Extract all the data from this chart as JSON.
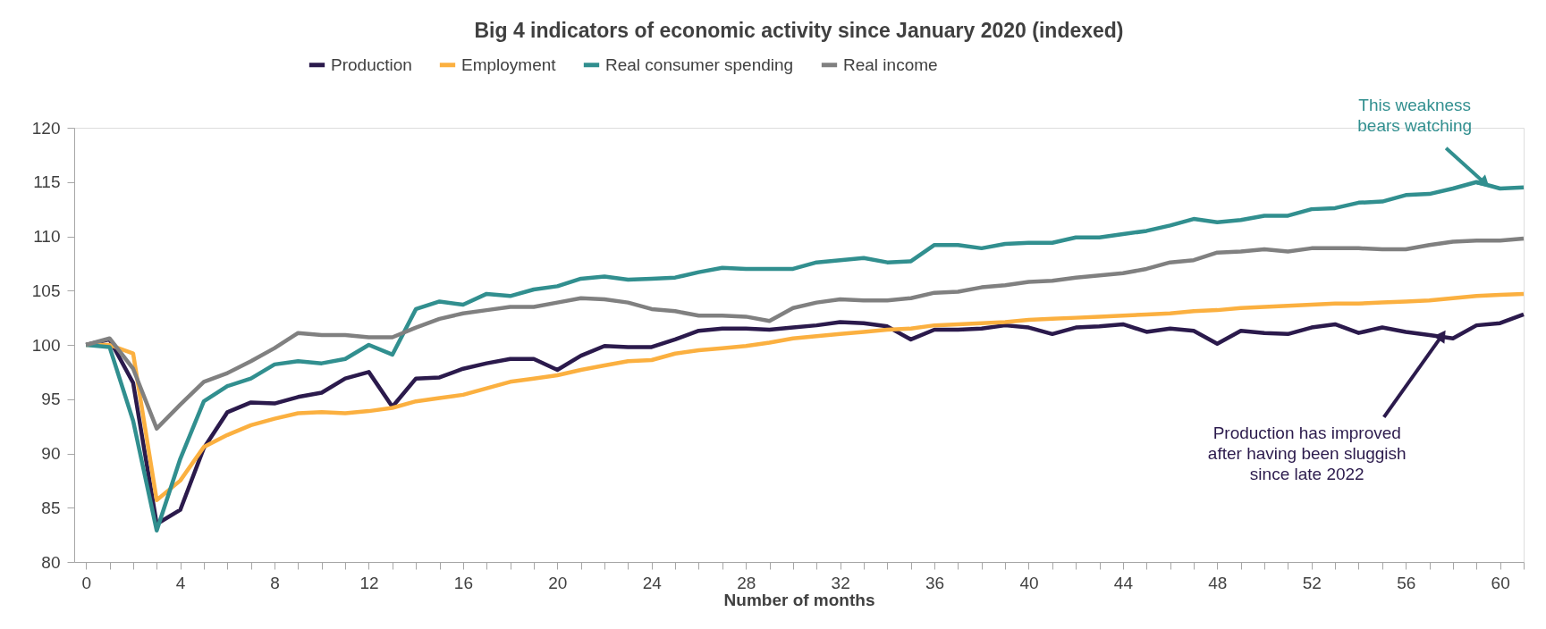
{
  "chart_data": {
    "type": "line",
    "title": "Big 4 indicators of economic activity since January 2020 (indexed)",
    "xlabel": "Number of months",
    "x": [
      0,
      1,
      2,
      3,
      4,
      5,
      6,
      7,
      8,
      9,
      10,
      11,
      12,
      13,
      14,
      15,
      16,
      17,
      18,
      19,
      20,
      21,
      22,
      23,
      24,
      25,
      26,
      27,
      28,
      29,
      30,
      31,
      32,
      33,
      34,
      35,
      36,
      37,
      38,
      39,
      40,
      41,
      42,
      43,
      44,
      45,
      46,
      47,
      48,
      49,
      50,
      51,
      52,
      53,
      54,
      55,
      56,
      57,
      58,
      59,
      60,
      61
    ],
    "series": [
      {
        "name": "Production",
        "color": "#2b1a4c",
        "values": [
          100,
          100.5,
          96.5,
          83.5,
          84.8,
          90.5,
          93.8,
          94.7,
          94.6,
          95.2,
          95.6,
          96.9,
          97.5,
          94.3,
          96.9,
          97,
          97.8,
          98.3,
          98.7,
          98.7,
          97.7,
          99,
          99.9,
          99.8,
          99.8,
          100.5,
          101.3,
          101.5,
          101.5,
          101.4,
          101.6,
          101.8,
          102.1,
          102,
          101.7,
          100.5,
          101.4,
          101.4,
          101.5,
          101.8,
          101.6,
          101,
          101.6,
          101.7,
          101.9,
          101.2,
          101.5,
          101.3,
          100.1,
          101.3,
          101.1,
          101,
          101.6,
          101.9,
          101.1,
          101.6,
          101.2,
          100.9,
          100.6,
          101.8,
          102,
          102.8
        ]
      },
      {
        "name": "Employment",
        "color": "#fbb040",
        "values": [
          100,
          100,
          99.2,
          85.7,
          87.5,
          90.6,
          91.7,
          92.6,
          93.2,
          93.7,
          93.8,
          93.7,
          93.9,
          94.2,
          94.8,
          95.1,
          95.4,
          96,
          96.6,
          96.9,
          97.2,
          97.7,
          98.1,
          98.5,
          98.6,
          99.2,
          99.5,
          99.7,
          99.9,
          100.2,
          100.6,
          100.8,
          101,
          101.2,
          101.4,
          101.5,
          101.8,
          101.9,
          102,
          102.1,
          102.3,
          102.4,
          102.5,
          102.6,
          102.7,
          102.8,
          102.9,
          103.1,
          103.2,
          103.4,
          103.5,
          103.6,
          103.7,
          103.8,
          103.8,
          103.9,
          104,
          104.1,
          104.3,
          104.5,
          104.6,
          104.7
        ]
      },
      {
        "name": "Real consumer spending",
        "color": "#318f8f",
        "values": [
          100,
          99.8,
          93,
          82.9,
          89.5,
          94.8,
          96.2,
          96.9,
          98.2,
          98.5,
          98.3,
          98.7,
          100,
          99.1,
          103.3,
          104,
          103.7,
          104.7,
          104.5,
          105.1,
          105.4,
          106.1,
          106.3,
          106,
          106.1,
          106.2,
          106.7,
          107.1,
          107,
          107,
          107,
          107.6,
          107.8,
          108,
          107.6,
          107.7,
          109.2,
          109.2,
          108.9,
          109.3,
          109.4,
          109.4,
          109.9,
          109.9,
          110.2,
          110.5,
          111,
          111.6,
          111.3,
          111.5,
          111.9,
          111.9,
          112.5,
          112.6,
          113.1,
          113.2,
          113.8,
          113.9,
          114.4,
          115,
          114.4,
          114.5
        ]
      },
      {
        "name": "Real income",
        "color": "#808080",
        "values": [
          100,
          100.6,
          97.8,
          92.3,
          94.5,
          96.6,
          97.4,
          98.5,
          99.7,
          101.1,
          100.9,
          100.9,
          100.7,
          100.7,
          101.6,
          102.4,
          102.9,
          103.2,
          103.5,
          103.5,
          103.9,
          104.3,
          104.2,
          103.9,
          103.3,
          103.1,
          102.7,
          102.7,
          102.6,
          102.2,
          103.4,
          103.9,
          104.2,
          104.1,
          104.1,
          104.3,
          104.8,
          104.9,
          105.3,
          105.5,
          105.8,
          105.9,
          106.2,
          106.4,
          106.6,
          107,
          107.6,
          107.8,
          108.5,
          108.6,
          108.8,
          108.6,
          108.9,
          108.9,
          108.9,
          108.8,
          108.8,
          109.2,
          109.5,
          109.6,
          109.6,
          109.8
        ]
      }
    ],
    "xlim": [
      -0.5,
      61
    ],
    "xticks": [
      0,
      {
        "value": 1,
        "label": null
      },
      {
        "value": 2,
        "label": null
      },
      {
        "value": 3,
        "label": null
      },
      4,
      {
        "value": 5,
        "label": null
      },
      {
        "value": 6,
        "label": null
      },
      {
        "value": 7,
        "label": null
      },
      8,
      {
        "value": 9,
        "label": null
      },
      {
        "value": 10,
        "label": null
      },
      {
        "value": 11,
        "label": null
      },
      12,
      {
        "value": 13,
        "label": null
      },
      {
        "value": 14,
        "label": null
      },
      {
        "value": 15,
        "label": null
      },
      16,
      {
        "value": 17,
        "label": null
      },
      {
        "value": 18,
        "label": null
      },
      {
        "value": 19,
        "label": null
      },
      20,
      {
        "value": 21,
        "label": null
      },
      {
        "value": 22,
        "label": null
      },
      {
        "value": 23,
        "label": null
      },
      24,
      {
        "value": 25,
        "label": null
      },
      {
        "value": 26,
        "label": null
      },
      {
        "value": 27,
        "label": null
      },
      28,
      {
        "value": 29,
        "label": null
      },
      {
        "value": 30,
        "label": null
      },
      {
        "value": 31,
        "label": null
      },
      32,
      {
        "value": 33,
        "label": null
      },
      {
        "value": 34,
        "label": null
      },
      {
        "value": 35,
        "label": null
      },
      36,
      {
        "value": 37,
        "label": null
      },
      {
        "value": 38,
        "label": null
      },
      {
        "value": 39,
        "label": null
      },
      40,
      {
        "value": 41,
        "label": null
      },
      {
        "value": 42,
        "label": null
      },
      {
        "value": 43,
        "label": null
      },
      44,
      {
        "value": 45,
        "label": null
      },
      {
        "value": 46,
        "label": null
      },
      {
        "value": 47,
        "label": null
      },
      48,
      {
        "value": 49,
        "label": null
      },
      {
        "value": 50,
        "label": null
      },
      {
        "value": 51,
        "label": null
      },
      52,
      {
        "value": 53,
        "label": null
      },
      {
        "value": 54,
        "label": null
      },
      {
        "value": 55,
        "label": null
      },
      56,
      {
        "value": 57,
        "label": null
      },
      {
        "value": 58,
        "label": null
      },
      {
        "value": 59,
        "label": null
      },
      60,
      {
        "value": 61,
        "label": null
      }
    ],
    "ylim": [
      80,
      120
    ],
    "yticks": [
      80,
      85,
      90,
      95,
      100,
      105,
      110,
      115,
      120
    ],
    "grid": false,
    "legend": "top",
    "marker": "none",
    "line_style": "solid",
    "annotations": [
      {
        "text": "This weakness\nbears watching",
        "x": 59.3,
        "y": 115
      },
      {
        "text": "Production has improved\nafter having been sluggish\nsince late 2022",
        "x": 57.5,
        "y": 100.75
      }
    ]
  }
}
